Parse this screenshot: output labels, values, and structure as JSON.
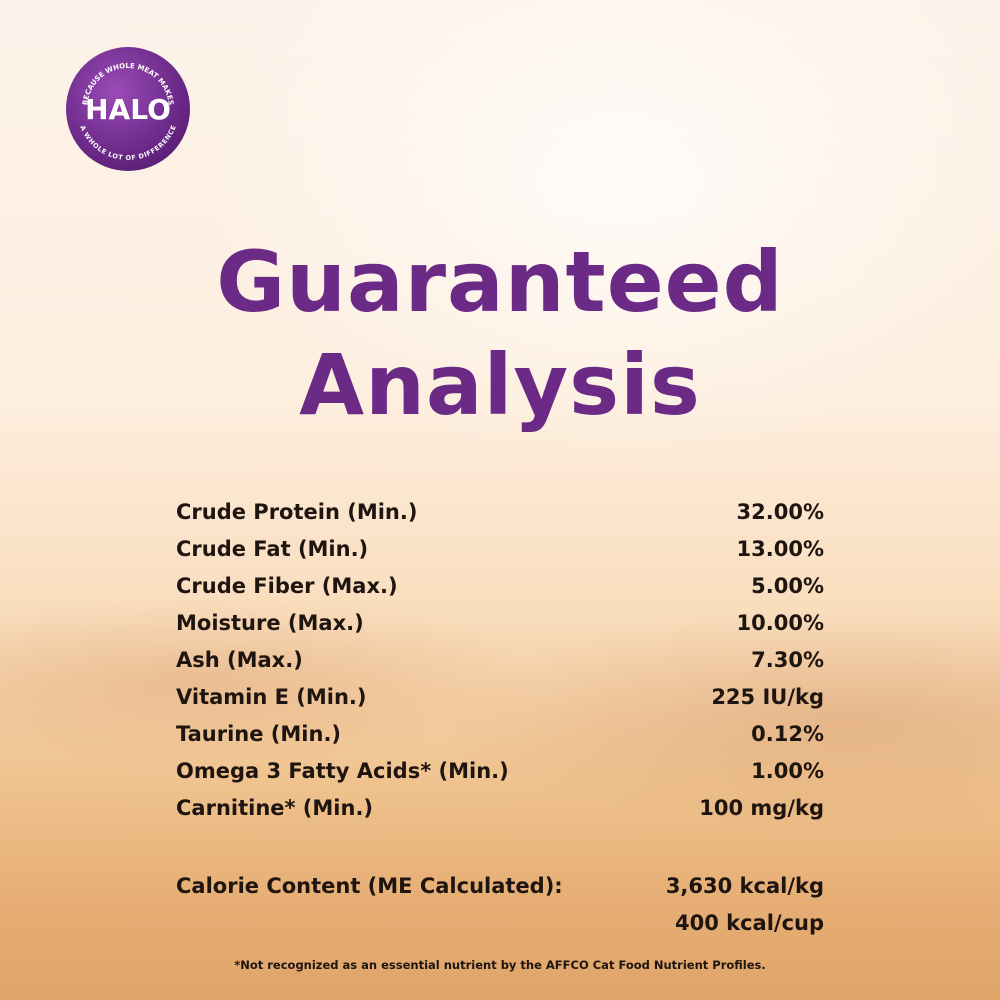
{
  "logo": {
    "name": "HALO",
    "top_text": "BECAUSE WHOLE MEAT MAKES",
    "bottom_text": "A WHOLE LOT OF DIFFERENCE"
  },
  "title": [
    "Guaranteed",
    "Analysis"
  ],
  "rows": [
    [
      "Crude Protein (Min.)",
      "32.00%"
    ],
    [
      "Crude Fat (Min.)",
      "13.00%"
    ],
    [
      "Crude Fiber (Max.)",
      "5.00%"
    ],
    [
      "Moisture (Max.)",
      "10.00%"
    ],
    [
      "Ash (Max.)",
      "7.30%"
    ],
    [
      "Vitamin E (Min.)",
      "225 IU/kg"
    ],
    [
      "Taurine (Min.)",
      "0.12%"
    ],
    [
      "Omega 3 Fatty Acids* (Min.)",
      "1.00%"
    ],
    [
      "Carnitine* (Min.)",
      "100 mg/kg"
    ]
  ],
  "calorie": {
    "label": "Calorie Content (ME Calculated):",
    "values": [
      "3,630 kcal/kg",
      "400 kcal/cup"
    ]
  },
  "footnote": "*Not recognized as an essential nutrient by the AFFCO Cat Food Nutrient Profiles."
}
